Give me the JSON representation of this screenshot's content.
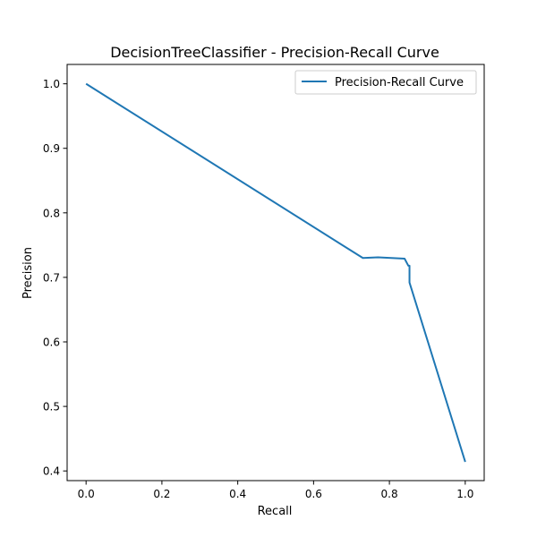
{
  "chart_data": {
    "type": "line",
    "title": "DecisionTreeClassifier - Precision-Recall Curve",
    "xlabel": "Recall",
    "ylabel": "Precision",
    "xlim": [
      -0.05,
      1.05
    ],
    "ylim": [
      0.385,
      1.03
    ],
    "xticks": [
      0.0,
      0.2,
      0.4,
      0.6,
      0.8,
      1.0
    ],
    "xtick_labels": [
      "0.0",
      "0.2",
      "0.4",
      "0.6",
      "0.8",
      "1.0"
    ],
    "yticks": [
      0.4,
      0.5,
      0.6,
      0.7,
      0.8,
      0.9,
      1.0
    ],
    "ytick_labels": [
      "0.4",
      "0.5",
      "0.6",
      "0.7",
      "0.8",
      "0.9",
      "1.0"
    ],
    "grid": false,
    "legend_position": "upper right",
    "series": [
      {
        "name": "Precision-Recall Curve",
        "color": "#1f77b4",
        "x": [
          0.0,
          0.73,
          0.77,
          0.84,
          0.85,
          0.853,
          0.853,
          1.0
        ],
        "y": [
          1.0,
          0.73,
          0.731,
          0.729,
          0.718,
          0.718,
          0.692,
          0.414
        ]
      }
    ]
  }
}
